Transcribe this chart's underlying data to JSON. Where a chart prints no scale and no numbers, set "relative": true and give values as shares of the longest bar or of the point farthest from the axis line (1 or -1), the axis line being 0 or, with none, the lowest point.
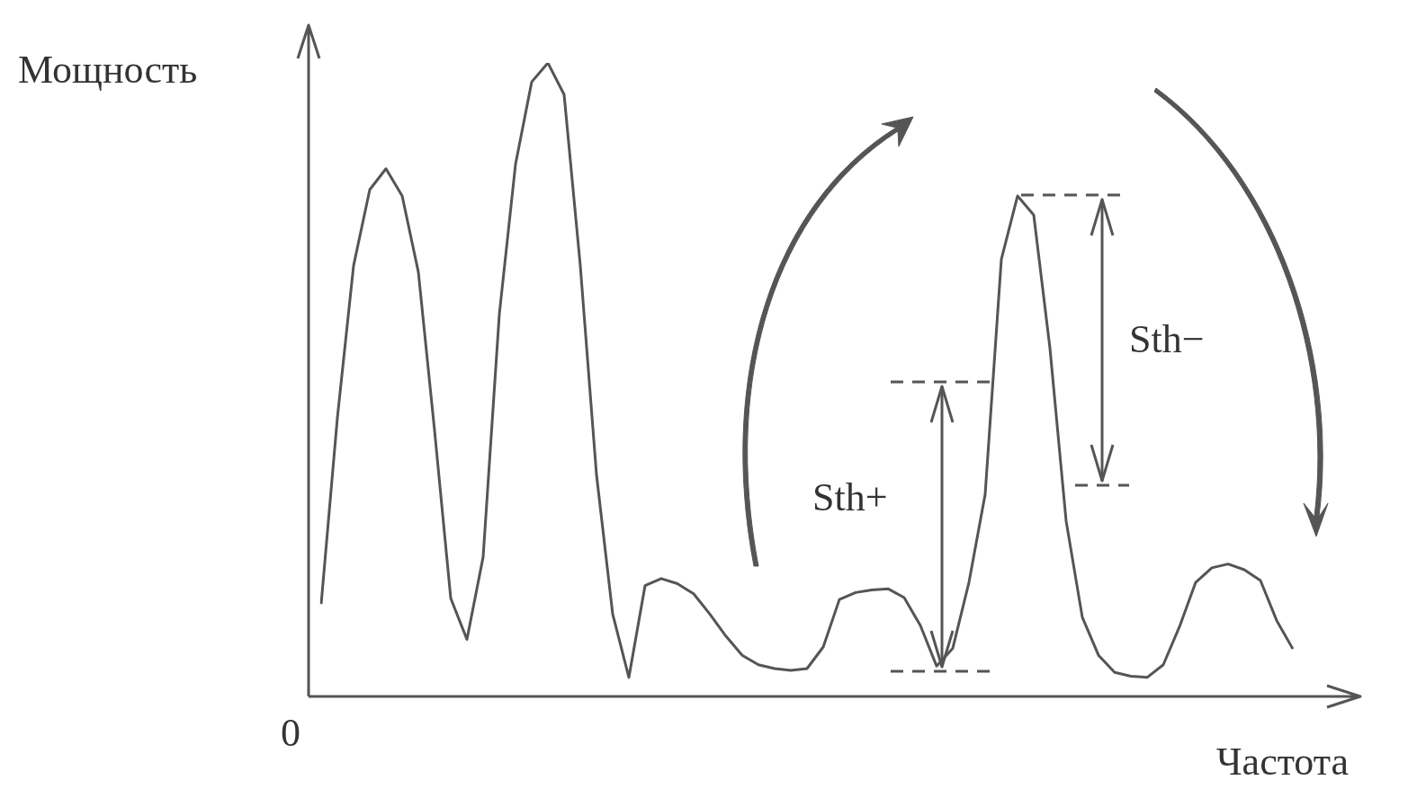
{
  "chart_data": {
    "type": "line",
    "xlabel": "Частота",
    "ylabel": "Мощность",
    "relative": true,
    "color": "#555555",
    "marker": "none",
    "line_style": "solid",
    "categories": [
      null,
      null,
      null,
      null,
      null,
      null,
      null,
      null,
      null,
      null,
      null,
      null,
      null,
      null,
      null,
      null,
      null,
      null,
      null,
      null,
      null,
      null,
      null,
      null,
      null,
      null,
      null,
      null,
      null,
      null,
      null,
      null,
      null,
      null,
      null,
      null,
      null,
      null,
      null,
      null,
      null,
      null,
      null,
      null,
      null,
      null,
      null,
      null,
      null,
      null,
      null,
      null,
      null,
      null,
      null,
      null,
      null,
      null,
      null,
      null,
      null
    ],
    "values": [
      0.146,
      0.44,
      0.68,
      0.8,
      0.833,
      0.79,
      0.67,
      0.42,
      0.155,
      0.09,
      0.22,
      0.603,
      0.84,
      0.97,
      1,
      0.95,
      0.68,
      0.35,
      0.13,
      0.03,
      0.175,
      0.186,
      0.178,
      0.162,
      0.13,
      0.095,
      0.065,
      0.05,
      0.044,
      0.041,
      0.044,
      0.078,
      0.153,
      0.164,
      0.168,
      0.17,
      0.156,
      0.112,
      0.048,
      0.076,
      0.18,
      0.319,
      0.69,
      0.79,
      0.76,
      0.55,
      0.277,
      0.125,
      0.065,
      0.038,
      0.032,
      0.03,
      0.05,
      0.11,
      0.18,
      0.203,
      0.209,
      0.2,
      0.183,
      0.12,
      0.075
    ],
    "annotations": [
      "Sth+",
      "Sth−",
      "0"
    ]
  }
}
